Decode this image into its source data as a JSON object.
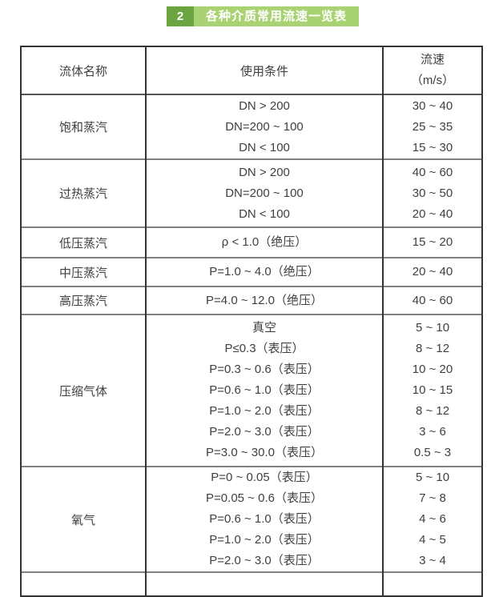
{
  "badge": {
    "number": "2",
    "title": "各种介质常用流速一览表"
  },
  "colors": {
    "badge_number_bg": "#6ba440",
    "badge_title_bg": "#a9d373",
    "badge_text": "#ffffff",
    "table_text": "#3f3f3f",
    "outer_border": "#333333",
    "row_divider": "#808080"
  },
  "table": {
    "headers": {
      "fluid": "流体名称",
      "condition": "使用条件",
      "speed_line1": "流速",
      "speed_line2": "（m/s）"
    },
    "groups": [
      {
        "name": "饱和蒸汽",
        "rows": [
          {
            "condition": "DN > 200",
            "speed": "30 ~ 40"
          },
          {
            "condition": "DN=200 ~ 100",
            "speed": "25 ~ 35"
          },
          {
            "condition": "DN < 100",
            "speed": "15 ~ 30"
          }
        ]
      },
      {
        "name": "过热蒸汽",
        "rows": [
          {
            "condition": "DN > 200",
            "speed": "40 ~ 60"
          },
          {
            "condition": "DN=200 ~ 100",
            "speed": "30 ~ 50"
          },
          {
            "condition": "DN < 100",
            "speed": "20 ~ 40"
          }
        ]
      },
      {
        "name": "低压蒸汽",
        "rows": [
          {
            "condition": "ρ < 1.0（绝压）",
            "speed": "15 ~ 20"
          }
        ]
      },
      {
        "name": "中压蒸汽",
        "rows": [
          {
            "condition": "P=1.0 ~ 4.0（绝压）",
            "speed": "20 ~ 40"
          }
        ]
      },
      {
        "name": "高压蒸汽",
        "rows": [
          {
            "condition": "P=4.0 ~ 12.0（绝压）",
            "speed": "40 ~ 60"
          }
        ]
      },
      {
        "name": "压缩气体",
        "rows": [
          {
            "condition": "真空",
            "speed": "5 ~ 10"
          },
          {
            "condition": "P≤0.3（表压）",
            "speed": "8 ~ 12"
          },
          {
            "condition": "P=0.3 ~ 0.6（表压）",
            "speed": "10 ~ 20"
          },
          {
            "condition": "P=0.6 ~ 1.0（表压）",
            "speed": "10 ~ 15"
          },
          {
            "condition": "P=1.0 ~ 2.0（表压）",
            "speed": "8 ~ 12"
          },
          {
            "condition": "P=2.0 ~ 3.0（表压）",
            "speed": "3 ~ 6"
          },
          {
            "condition": "P=3.0 ~ 30.0（表压）",
            "speed": "0.5 ~ 3"
          }
        ]
      },
      {
        "name": "氧气",
        "rows": [
          {
            "condition": "P=0 ~ 0.05（表压）",
            "speed": "5 ~ 10"
          },
          {
            "condition": "P=0.05 ~ 0.6（表压）",
            "speed": "7 ~ 8"
          },
          {
            "condition": "P=0.6 ~ 1.0（表压）",
            "speed": "4 ~ 6"
          },
          {
            "condition": "P=1.0 ~ 2.0（表压）",
            "speed": "4 ~ 5"
          },
          {
            "condition": "P=2.0 ~ 3.0（表压）",
            "speed": "3 ~ 4"
          }
        ]
      }
    ]
  }
}
